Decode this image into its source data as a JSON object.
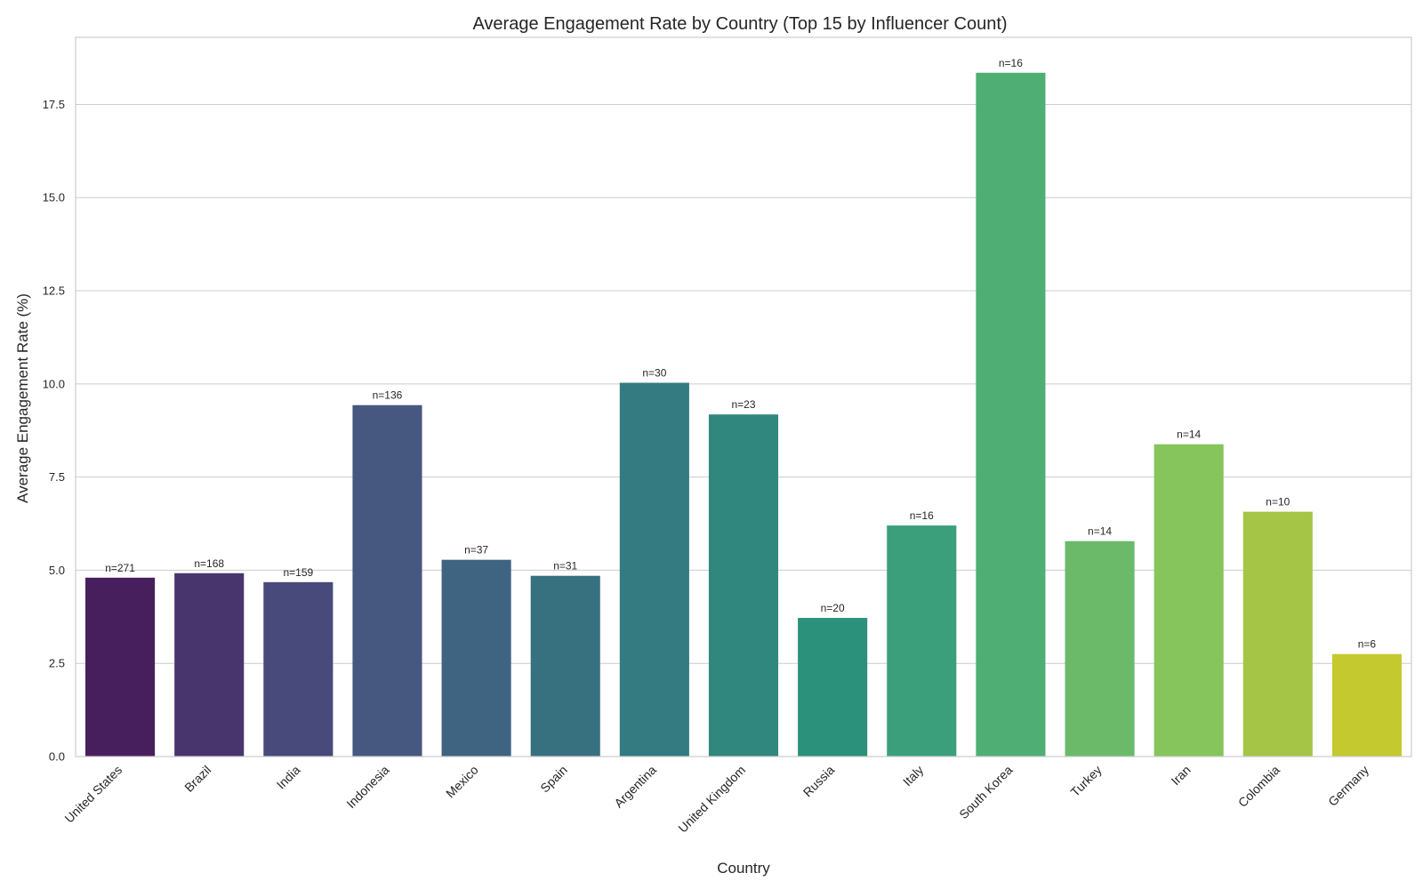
{
  "chart_data": {
    "type": "bar",
    "title": "Average Engagement Rate by Country (Top 15 by Influencer Count)",
    "xlabel": "Country",
    "ylabel": "Average Engagement Rate (%)",
    "ylim": [
      0,
      19.3
    ],
    "yticks": [
      "0.0",
      "2.5",
      "5.0",
      "7.5",
      "10.0",
      "12.5",
      "15.0",
      "17.5"
    ],
    "ytick_values": [
      0,
      2.5,
      5,
      7.5,
      10,
      12.5,
      15,
      17.5
    ],
    "grid": "horizontal",
    "categories": [
      "United States",
      "Brazil",
      "India",
      "Indonesia",
      "Mexico",
      "Spain",
      "Argentina",
      "United Kingdom",
      "Russia",
      "Italy",
      "South Korea",
      "Turkey",
      "Iran",
      "Colombia",
      "Germany"
    ],
    "values": [
      4.8,
      4.92,
      4.68,
      9.43,
      5.28,
      4.85,
      10.03,
      9.18,
      3.72,
      6.2,
      18.35,
      5.78,
      8.38,
      6.57,
      2.75
    ],
    "labels": [
      "n=271",
      "n=168",
      "n=159",
      "n=136",
      "n=37",
      "n=31",
      "n=30",
      "n=23",
      "n=20",
      "n=16",
      "n=16",
      "n=14",
      "n=14",
      "n=10",
      "n=6"
    ],
    "colors": [
      "#481f5d",
      "#48356e",
      "#474a7a",
      "#46587f",
      "#3e6482",
      "#37717f",
      "#337b80",
      "#30877d",
      "#2b917a",
      "#3a9f7a",
      "#4fae74",
      "#6aba6a",
      "#86c45c",
      "#a4c545",
      "#c4c92f"
    ]
  }
}
